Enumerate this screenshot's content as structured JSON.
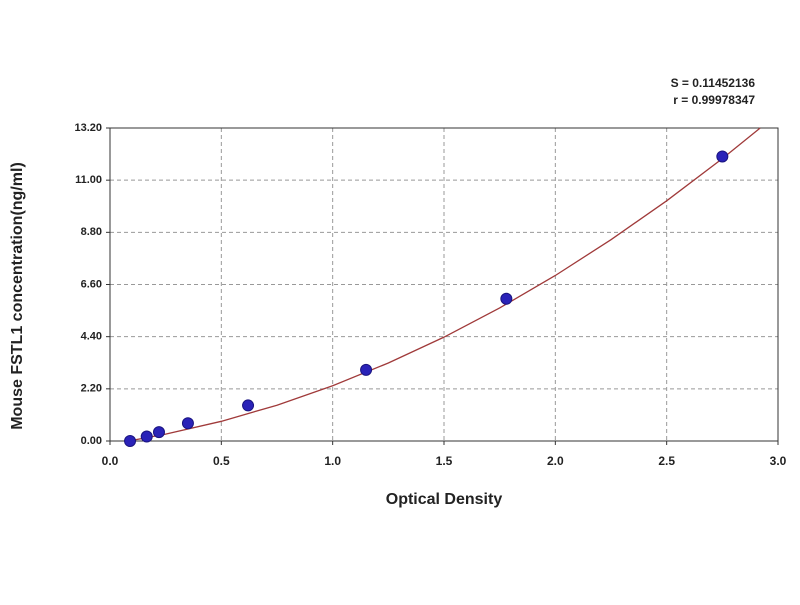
{
  "chart_data": {
    "type": "scatter",
    "x_label": "Optical Density",
    "y_label": "Mouse FSTL1 concentration(ng/ml)",
    "annotations": [
      "S = 0.11452136",
      "r = 0.99978347"
    ],
    "xlim": [
      0,
      3.0
    ],
    "ylim": [
      0,
      13.2
    ],
    "xticks": [
      {
        "value": 0,
        "label": "0.0"
      },
      0.5,
      {
        "value": 1,
        "label": "1.0"
      },
      1.5,
      {
        "value": 2,
        "label": "2.0"
      },
      2.5,
      {
        "value": 3,
        "label": "3.0"
      }
    ],
    "yticks": [
      {
        "value": 0,
        "label": "0.00"
      },
      {
        "value": 2.2,
        "label": "2.20"
      },
      {
        "value": 4.4,
        "label": "4.40"
      },
      {
        "value": 6.6,
        "label": "6.60"
      },
      {
        "value": 8.8,
        "label": "8.80"
      },
      {
        "value": 11,
        "label": "11.00"
      },
      {
        "value": 13.2,
        "label": "13.20"
      }
    ],
    "grid": true,
    "series": [
      {
        "type": "scatter",
        "color": "#2a22b8",
        "x": [
          0.09,
          0.165,
          0.22,
          0.35,
          0.62,
          1.15,
          1.78,
          2.75
        ],
        "values": [
          0,
          0.1875,
          0.375,
          0.75,
          1.5,
          3,
          6,
          12
        ]
      },
      {
        "type": "line",
        "color": "#a03a3a",
        "x": [
          0.09,
          0.25,
          0.5,
          0.75,
          1.0,
          1.25,
          1.5,
          1.75,
          2.0,
          2.25,
          2.5,
          2.75,
          2.92
        ],
        "values": [
          0.01,
          0.29,
          0.83,
          1.51,
          2.33,
          3.29,
          4.38,
          5.61,
          6.98,
          8.49,
          10.13,
          11.91,
          13.2
        ]
      }
    ]
  }
}
